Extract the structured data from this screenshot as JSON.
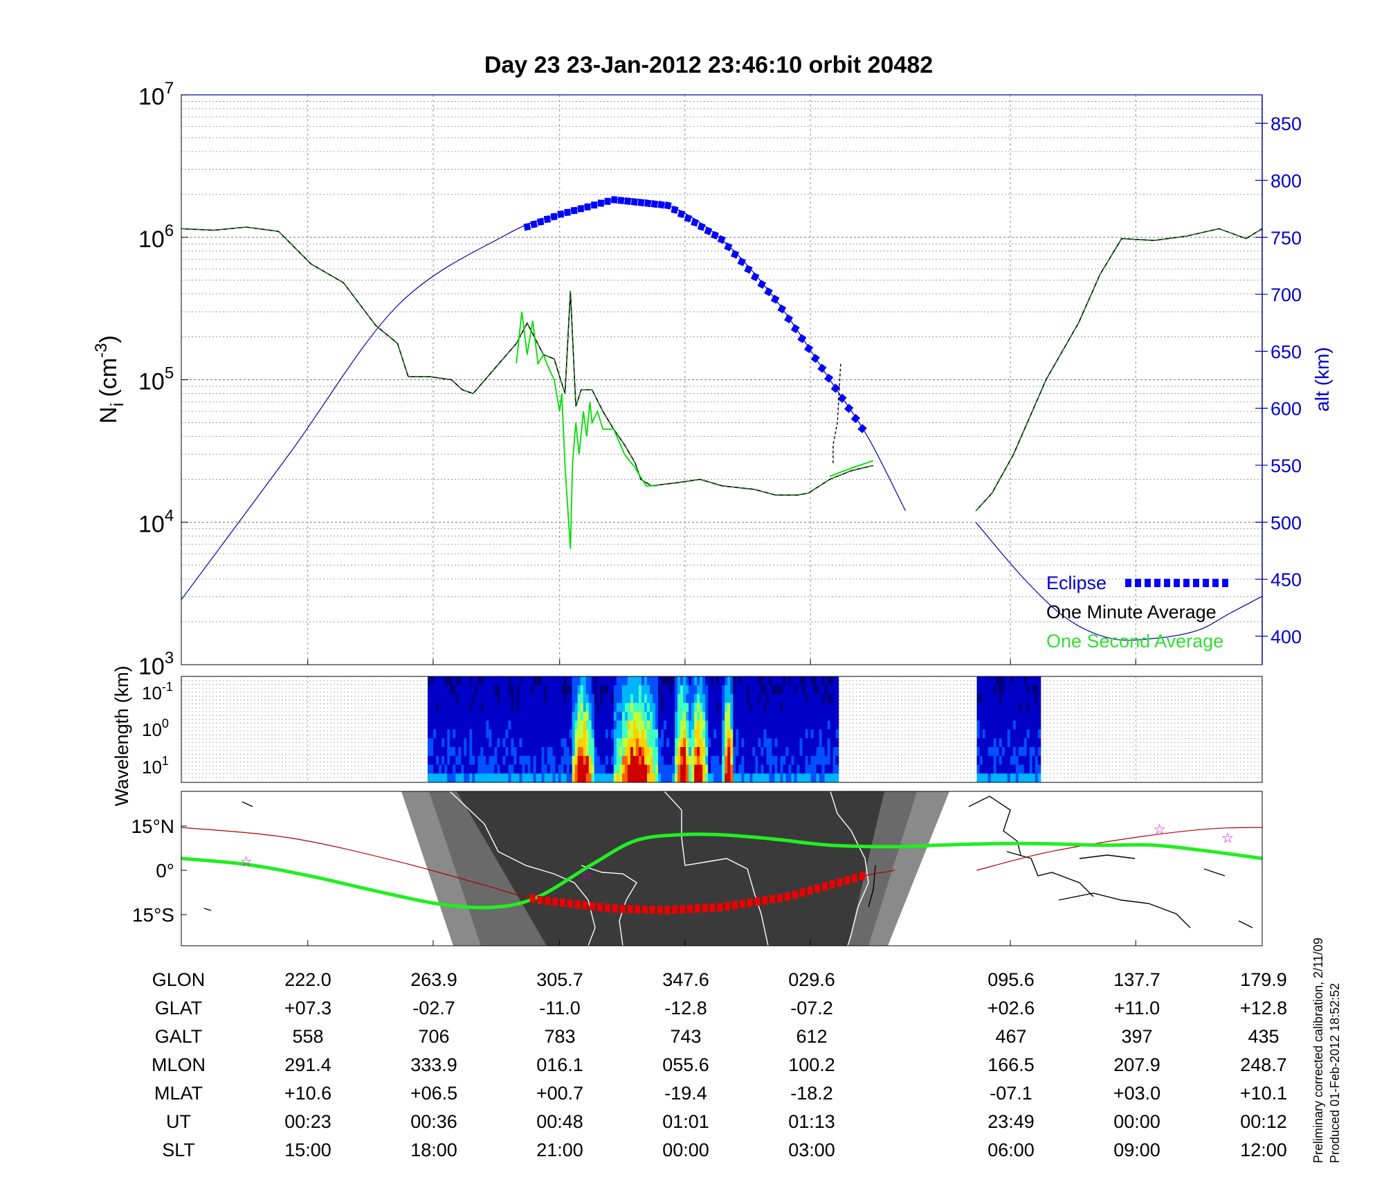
{
  "title": "Day 23  23-Jan-2012 23:46:10   orbit 20482",
  "main_panel": {
    "ylabel_main": "N",
    "ylabel_sub": "i",
    "ylabel_unit": "(cm",
    "ylabel_exp": "-3",
    "ylabel_close": ")",
    "y_ticks": [
      {
        "base": "10",
        "exp": "3",
        "v": 3
      },
      {
        "base": "10",
        "exp": "4",
        "v": 4
      },
      {
        "base": "10",
        "exp": "5",
        "v": 5
      },
      {
        "base": "10",
        "exp": "6",
        "v": 6
      },
      {
        "base": "10",
        "exp": "7",
        "v": 7
      }
    ],
    "right_ylabel": "alt (km)",
    "right_ticks": [
      "400",
      "450",
      "500",
      "550",
      "600",
      "650",
      "700",
      "750",
      "800",
      "850"
    ],
    "legend": {
      "eclipse": "Eclipse",
      "minute": "One Minute Average",
      "second": "One Second Average"
    },
    "colors": {
      "eclipse": "#0000ff",
      "minute": "#000000",
      "second": "#00dd00",
      "altitude": "#0000aa"
    }
  },
  "wavelength_panel": {
    "ylabel": "Wavelength (km)",
    "ticks": [
      {
        "base": "10",
        "exp": "-1"
      },
      {
        "base": "10",
        "exp": "0"
      },
      {
        "base": "10",
        "exp": "1"
      }
    ]
  },
  "map_panel": {
    "lat_ticks": [
      "15°N",
      "0°",
      "15°S"
    ]
  },
  "table": {
    "rows": [
      {
        "label": "GLON",
        "values": [
          "222.0",
          "263.9",
          "305.7",
          "347.6",
          "029.6",
          "095.6",
          "137.7",
          "179.9"
        ]
      },
      {
        "label": "GLAT",
        "values": [
          "+07.3",
          "-02.7",
          "-11.0",
          "-12.8",
          "-07.2",
          "+02.6",
          "+11.0",
          "+12.8"
        ]
      },
      {
        "label": "GALT",
        "values": [
          "558",
          "706",
          "783",
          "743",
          "612",
          "467",
          "397",
          "435"
        ]
      },
      {
        "label": "MLON",
        "values": [
          "291.4",
          "333.9",
          "016.1",
          "055.6",
          "100.2",
          "166.5",
          "207.9",
          "248.7"
        ]
      },
      {
        "label": "MLAT",
        "values": [
          "+10.6",
          "+06.5",
          "+00.7",
          "-19.4",
          "-18.2",
          "-07.1",
          "+03.0",
          "+10.1"
        ]
      },
      {
        "label": "UT",
        "values": [
          "00:23",
          "00:36",
          "00:48",
          "01:01",
          "01:13",
          "23:49",
          "00:00",
          "00:12"
        ]
      },
      {
        "label": "SLT",
        "values": [
          "15:00",
          "18:00",
          "21:00",
          "00:00",
          "03:00",
          "06:00",
          "09:00",
          "12:00"
        ]
      }
    ]
  },
  "side_note": {
    "line1": "Preliminary corrected calibration, 2/11/09",
    "line2": "Produced 01-Feb-2012 18:52:52"
  },
  "chart_data": {
    "type": "line",
    "y_scale": "log",
    "ylim": [
      1000,
      10000000
    ],
    "right_ylim": [
      375,
      875
    ],
    "x_ticks_slt": [
      "15:00",
      "18:00",
      "21:00",
      "00:00",
      "03:00",
      "06:00",
      "09:00",
      "12:00"
    ],
    "series": [
      {
        "name": "One Minute Average",
        "color": "#000000",
        "segments": [
          [
            [
              0,
              1150000.0
            ],
            [
              0.03,
              1120000.0
            ],
            [
              0.06,
              1180000.0
            ],
            [
              0.09,
              1100000.0
            ],
            [
              0.12,
              650000.0
            ],
            [
              0.15,
              480000.0
            ],
            [
              0.18,
              240000.0
            ],
            [
              0.2,
              180000.0
            ],
            [
              0.21,
              105000.0
            ],
            [
              0.23,
              105000.0
            ],
            [
              0.25,
              100000.0
            ],
            [
              0.26,
              85000.0
            ],
            [
              0.27,
              80000.0
            ],
            [
              0.29,
              120000.0
            ],
            [
              0.31,
              180000.0
            ],
            [
              0.32,
              250000.0
            ],
            [
              0.335,
              150000.0
            ],
            [
              0.345,
              140000.0
            ],
            [
              0.35,
              105000.0
            ],
            [
              0.355,
              80000.0
            ],
            [
              0.36,
              420000.0
            ],
            [
              0.365,
              65000.0
            ],
            [
              0.37,
              85000.0
            ],
            [
              0.38,
              85000.0
            ],
            [
              0.39,
              60000.0
            ],
            [
              0.4,
              45000.0
            ],
            [
              0.41,
              35000.0
            ],
            [
              0.42,
              26000.0
            ],
            [
              0.425,
              20000.0
            ],
            [
              0.435,
              18000.0
            ],
            [
              0.46,
              19000.0
            ],
            [
              0.48,
              20000.0
            ],
            [
              0.5,
              18000.0
            ],
            [
              0.53,
              17000.0
            ],
            [
              0.55,
              15500.0
            ],
            [
              0.57,
              15500.0
            ],
            [
              0.58,
              16000.0
            ],
            [
              0.6,
              20000.0
            ],
            [
              0.62,
              23000.0
            ],
            [
              0.64,
              25000.0
            ]
          ],
          [
            [
              0.735,
              12000.0
            ],
            [
              0.75,
              16000.0
            ],
            [
              0.77,
              30000.0
            ],
            [
              0.8,
              100000.0
            ],
            [
              0.83,
              250000.0
            ],
            [
              0.85,
              550000.0
            ],
            [
              0.87,
              980000.0
            ],
            [
              0.9,
              950000.0
            ],
            [
              0.93,
              1020000.0
            ],
            [
              0.96,
              1150000.0
            ],
            [
              0.985,
              980000.0
            ],
            [
              1.0,
              1150000.0
            ]
          ]
        ]
      },
      {
        "name": "One Second Average",
        "color": "#00dd00",
        "segments": [
          [
            [
              0.31,
              130000.0
            ],
            [
              0.315,
              300000.0
            ],
            [
              0.32,
              150000.0
            ],
            [
              0.325,
              260000.0
            ],
            [
              0.33,
              130000.0
            ],
            [
              0.335,
              150000.0
            ],
            [
              0.34,
              120000.0
            ],
            [
              0.345,
              100000.0
            ],
            [
              0.35,
              60000.0
            ],
            [
              0.352,
              80000.0
            ],
            [
              0.355,
              25000.0
            ],
            [
              0.358,
              11000.0
            ],
            [
              0.36,
              6500.0
            ],
            [
              0.362,
              26000.0
            ],
            [
              0.365,
              50000.0
            ],
            [
              0.368,
              30000.0
            ],
            [
              0.372,
              60000.0
            ],
            [
              0.375,
              40000.0
            ],
            [
              0.378,
              70000.0
            ],
            [
              0.38,
              50000.0
            ],
            [
              0.385,
              60000.0
            ],
            [
              0.39,
              45000.0
            ],
            [
              0.4,
              45000.0
            ],
            [
              0.41,
              30000.0
            ],
            [
              0.42,
              24000.0
            ],
            [
              0.43,
              18000.0
            ],
            [
              0.44,
              18000.0
            ]
          ],
          [
            [
              0.6,
              21000.0
            ],
            [
              0.62,
              24000.0
            ],
            [
              0.64,
              27000.0
            ]
          ]
        ]
      }
    ],
    "altitude_km": [
      [
        0,
        432
      ],
      [
        0.1,
        560
      ],
      [
        0.2,
        690
      ],
      [
        0.3,
        752
      ],
      [
        0.35,
        770
      ],
      [
        0.4,
        783
      ],
      [
        0.45,
        778
      ],
      [
        0.5,
        748
      ],
      [
        0.55,
        695
      ],
      [
        0.6,
        625
      ],
      [
        0.635,
        575
      ],
      [
        0.67,
        510
      ]
    ],
    "altitude_km_2": [
      [
        0.735,
        500
      ],
      [
        0.78,
        450
      ],
      [
        0.82,
        415
      ],
      [
        0.86,
        398
      ],
      [
        0.9,
        398
      ],
      [
        0.94,
        405
      ],
      [
        0.97,
        420
      ],
      [
        1.0,
        435
      ]
    ],
    "eclipse_x": [
      0.32,
      0.63
    ],
    "spectrogram_x": [
      [
        0.228,
        0.608
      ],
      [
        0.736,
        0.795
      ]
    ],
    "ground_track": {
      "glat": [
        [
          0,
          4
        ],
        [
          0.06,
          2
        ],
        [
          0.12,
          -2
        ],
        [
          0.18,
          -7
        ],
        [
          0.24,
          -11.5
        ],
        [
          0.29,
          -12.5
        ],
        [
          0.33,
          -9
        ],
        [
          0.38,
          2
        ],
        [
          0.42,
          10
        ],
        [
          0.46,
          12
        ],
        [
          0.5,
          12
        ],
        [
          0.55,
          10.5
        ],
        [
          0.6,
          8.5
        ],
        [
          0.66,
          8
        ],
        [
          0.7,
          8.5
        ],
        [
          0.75,
          9
        ],
        [
          0.8,
          9
        ],
        [
          0.85,
          8.5
        ],
        [
          0.9,
          8.5
        ],
        [
          0.95,
          6.5
        ],
        [
          1.0,
          4
        ]
      ],
      "mlat": [
        [
          0,
          14.5
        ],
        [
          0.1,
          11
        ],
        [
          0.2,
          3
        ],
        [
          0.28,
          -5
        ],
        [
          0.33,
          -10
        ],
        [
          0.4,
          -13
        ],
        [
          0.45,
          -13.5
        ],
        [
          0.5,
          -12.5
        ],
        [
          0.56,
          -9
        ],
        [
          0.6,
          -5
        ],
        [
          0.63,
          -2
        ],
        [
          0.66,
          0
        ]
      ],
      "mlat_2": [
        [
          0.736,
          0
        ],
        [
          0.8,
          6
        ],
        [
          0.88,
          11
        ],
        [
          0.95,
          14
        ],
        [
          1.0,
          14.5
        ]
      ],
      "red_x": [
        0.325,
        0.63
      ]
    }
  }
}
